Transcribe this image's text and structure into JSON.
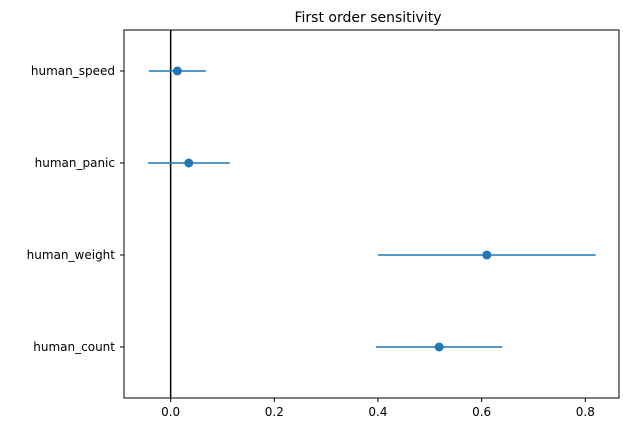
{
  "chart_data": {
    "type": "scatter",
    "title": "First order sensitivity",
    "xlabel": "",
    "ylabel": "",
    "xlim": [
      -0.09,
      0.865
    ],
    "xticks": [
      0.0,
      0.2,
      0.4,
      0.6,
      0.8
    ],
    "xtick_labels": [
      "0.0",
      "0.2",
      "0.4",
      "0.6",
      "0.8"
    ],
    "categories": [
      "human_speed",
      "human_panic",
      "human_weight",
      "human_count"
    ],
    "values": [
      0.013,
      0.035,
      0.61,
      0.518
    ],
    "lower": [
      -0.042,
      -0.044,
      0.4,
      0.396
    ],
    "upper": [
      0.068,
      0.114,
      0.82,
      0.64
    ],
    "reference_line_x": 0.0,
    "grid": false,
    "colors": {
      "marker": "#1f77b4",
      "reference": "#000000",
      "axes": "#000000"
    }
  }
}
